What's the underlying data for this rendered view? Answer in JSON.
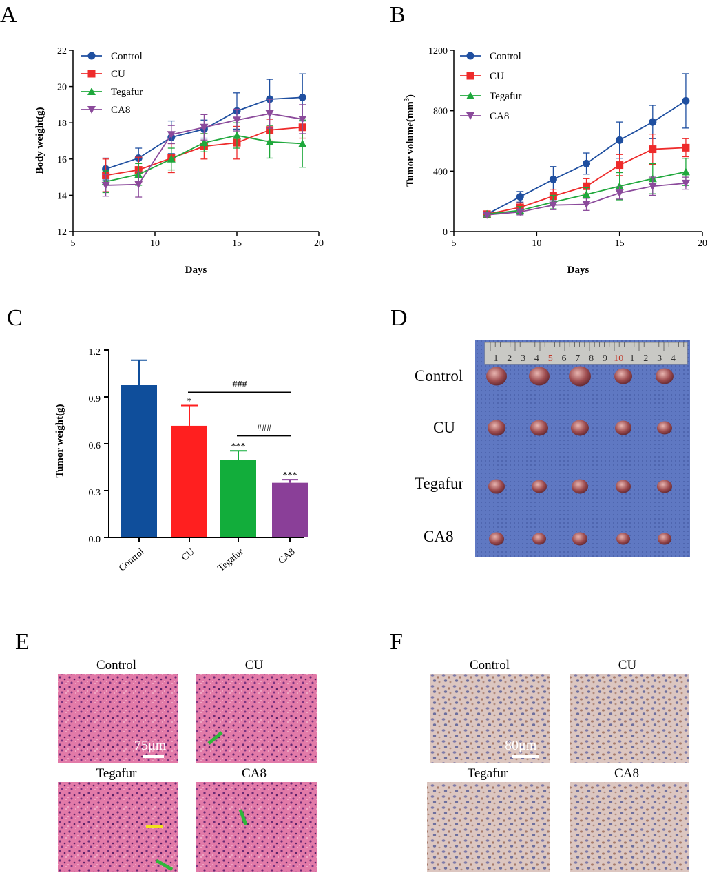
{
  "panels": {
    "A": "A",
    "B": "B",
    "C": "C",
    "D": "D",
    "E": "E",
    "F": "F"
  },
  "chart_data": [
    {
      "panel": "A",
      "type": "line",
      "title": "",
      "xlabel": "Days",
      "ylabel": "Body weight(g)",
      "xlim": [
        5,
        20
      ],
      "ylim": [
        12,
        22
      ],
      "xticks": [
        5,
        10,
        15,
        20
      ],
      "yticks": [
        12,
        14,
        16,
        18,
        20,
        22
      ],
      "legend_position": "top-left",
      "x": [
        7,
        9,
        11,
        13,
        15,
        17,
        19
      ],
      "series": [
        {
          "name": "Control",
          "color": "#1f4fa0",
          "marker": "circle",
          "values": [
            15.45,
            16.05,
            17.2,
            17.65,
            18.65,
            19.3,
            19.4
          ],
          "errors": [
            0.6,
            0.55,
            0.9,
            0.5,
            1.0,
            1.1,
            1.3
          ]
        },
        {
          "name": "CU",
          "color": "#ee2b2b",
          "marker": "square",
          "values": [
            15.1,
            15.4,
            16.05,
            16.7,
            16.9,
            17.6,
            17.75
          ],
          "errors": [
            0.9,
            0.7,
            0.8,
            0.7,
            0.9,
            0.6,
            0.6
          ]
        },
        {
          "name": "Tegafur",
          "color": "#1fa83c",
          "marker": "triangle-up",
          "values": [
            14.75,
            15.15,
            16.0,
            16.9,
            17.3,
            16.95,
            16.85
          ],
          "errors": [
            0.6,
            0.6,
            0.6,
            0.5,
            0.7,
            0.9,
            1.3
          ]
        },
        {
          "name": "CA8",
          "color": "#8b4a9b",
          "marker": "triangle-down",
          "values": [
            14.55,
            14.6,
            17.35,
            17.75,
            18.15,
            18.5,
            18.2
          ],
          "errors": [
            0.6,
            0.7,
            0.5,
            0.7,
            0.6,
            0.8,
            0.8
          ]
        }
      ]
    },
    {
      "panel": "B",
      "type": "line",
      "title": "",
      "xlabel": "Days",
      "ylabel": "Tumor volume(mm",
      "ylabel_sup": "3",
      "ylabel_end": ")",
      "xlim": [
        5,
        20
      ],
      "ylim": [
        0,
        1200
      ],
      "xticks": [
        5,
        10,
        15,
        20
      ],
      "yticks": [
        0,
        400,
        800,
        1200
      ],
      "legend_position": "top-left",
      "x": [
        7,
        9,
        11,
        13,
        15,
        17,
        19
      ],
      "series": [
        {
          "name": "Control",
          "color": "#1f4fa0",
          "marker": "circle",
          "values": [
            115,
            230,
            345,
            450,
            605,
            725,
            865
          ],
          "errors": [
            15,
            35,
            85,
            70,
            120,
            110,
            180
          ]
        },
        {
          "name": "CU",
          "color": "#ee2b2b",
          "marker": "square",
          "values": [
            115,
            160,
            235,
            300,
            440,
            545,
            555
          ],
          "errors": [
            15,
            30,
            45,
            50,
            70,
            100,
            60
          ]
        },
        {
          "name": "Tegafur",
          "color": "#1fa83c",
          "marker": "triangle-up",
          "values": [
            115,
            140,
            195,
            245,
            300,
            350,
            395
          ],
          "errors": [
            10,
            25,
            45,
            45,
            90,
            100,
            90
          ]
        },
        {
          "name": "CA8",
          "color": "#8b4a9b",
          "marker": "triangle-down",
          "values": [
            110,
            130,
            175,
            180,
            255,
            300,
            320
          ],
          "errors": [
            10,
            20,
            30,
            40,
            40,
            60,
            40
          ]
        }
      ]
    },
    {
      "panel": "C",
      "type": "bar",
      "title": "",
      "xlabel": "",
      "ylabel": "Tumor weight(g)",
      "ylim": [
        0,
        1.2
      ],
      "yticks": [
        "0.0",
        "0.3",
        "0.6",
        "0.9",
        "1.2"
      ],
      "categories": [
        "Control",
        "CU",
        "Tegafur",
        "CA8"
      ],
      "values": [
        0.975,
        0.715,
        0.495,
        0.35
      ],
      "errors": [
        0.16,
        0.13,
        0.06,
        0.02
      ],
      "colors": [
        "#0f4e9b",
        "#ff1f1f",
        "#12ad3b",
        "#8a3f98"
      ],
      "significance": [
        "",
        "*",
        "***",
        "***"
      ],
      "brackets": [
        {
          "from": "CU",
          "to": "CA8",
          "label": "###",
          "y": 0.93
        },
        {
          "from": "Tegafur",
          "to": "CA8",
          "label": "###",
          "y": 0.65
        }
      ]
    }
  ],
  "panel_d": {
    "row_labels": [
      "Control",
      "CU",
      "Tegafur",
      "CA8"
    ],
    "ruler_marks": [
      "1",
      "2",
      "3",
      "4",
      "5",
      "6",
      "7",
      "8",
      "9",
      "10",
      "1",
      "2",
      "3",
      "4"
    ]
  },
  "panel_e": {
    "titles": [
      "Control",
      "CU",
      "Tegafur",
      "CA8"
    ],
    "scale_bar": "75μm"
  },
  "panel_f": {
    "titles": [
      "Control",
      "CU",
      "Tegafur",
      "CA8"
    ],
    "scale_bar": "80μm"
  }
}
